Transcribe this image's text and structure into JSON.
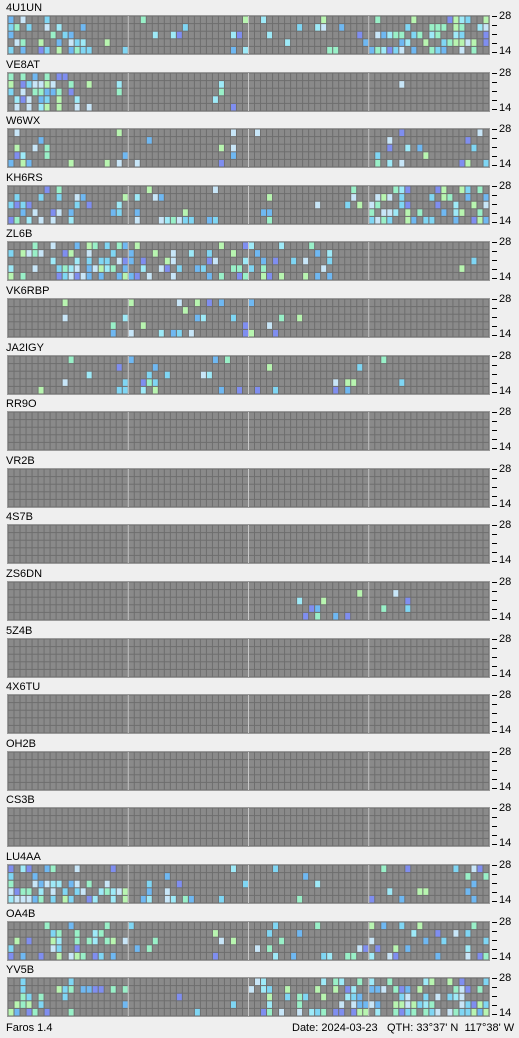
{
  "colors": {
    "background": "#efefef",
    "grid_bg": "#6e6e6e",
    "cell_off": "#8a8a8a",
    "cell_grid_line": "#6e6e6e",
    "block_divider": "#c8c8c8",
    "signal_levels": [
      "#c8e6f8",
      "#9eeaf8",
      "#7fd6f4",
      "#6fb8f2",
      "#7f8ef0",
      "#99f0c8",
      "#b8f5b0"
    ]
  },
  "scale_labels": {
    "top": "28",
    "bottom": "14"
  },
  "beacons": [
    {
      "call": "4U1UN",
      "activity": [
        0.55,
        0.4,
        0.15,
        0.05,
        0.05,
        0.1,
        0.2,
        0.1,
        0.2,
        0.55,
        0.6,
        0.65
      ]
    },
    {
      "call": "VE8AT",
      "activity": [
        0.6,
        0.35,
        0.05,
        0.0,
        0.0,
        0.05,
        0.02,
        0.0,
        0.0,
        0.02,
        0.0,
        0.0
      ]
    },
    {
      "call": "W6WX",
      "activity": [
        0.2,
        0.05,
        0.05,
        0.05,
        0.0,
        0.15,
        0.05,
        0.0,
        0.05,
        0.25,
        0.15,
        0.3
      ]
    },
    {
      "call": "KH6RS",
      "activity": [
        0.5,
        0.3,
        0.3,
        0.25,
        0.25,
        0.3,
        0.1,
        0.05,
        0.3,
        0.55,
        0.4,
        0.55
      ]
    },
    {
      "call": "ZL6B",
      "activity": [
        0.4,
        0.55,
        0.45,
        0.35,
        0.4,
        0.35,
        0.35,
        0.25,
        0.0,
        0.0,
        0.0,
        0.05
      ]
    },
    {
      "call": "VK6RBP",
      "activity": [
        0.05,
        0.05,
        0.05,
        0.2,
        0.4,
        0.3,
        0.2,
        0.05,
        0.0,
        0.0,
        0.0,
        0.0
      ]
    },
    {
      "call": "JA2IGY",
      "activity": [
        0.05,
        0.1,
        0.15,
        0.2,
        0.15,
        0.25,
        0.25,
        0.1,
        0.05,
        0.05,
        0.0,
        0.05
      ]
    },
    {
      "call": "RR9O",
      "activity": [
        0,
        0,
        0,
        0,
        0,
        0,
        0,
        0,
        0,
        0,
        0,
        0
      ]
    },
    {
      "call": "VR2B",
      "activity": [
        0,
        0,
        0,
        0,
        0,
        0,
        0,
        0,
        0,
        0,
        0,
        0
      ]
    },
    {
      "call": "4S7B",
      "activity": [
        0,
        0,
        0,
        0,
        0,
        0,
        0,
        0,
        0,
        0,
        0,
        0
      ]
    },
    {
      "call": "ZS6DN",
      "activity": [
        0.02,
        0.0,
        0.0,
        0.0,
        0.0,
        0.05,
        0.0,
        0.15,
        0.1,
        0.15,
        0.0,
        0.0
      ]
    },
    {
      "call": "5Z4B",
      "activity": [
        0,
        0,
        0,
        0,
        0,
        0,
        0,
        0,
        0,
        0,
        0,
        0
      ]
    },
    {
      "call": "4X6TU",
      "activity": [
        0,
        0,
        0,
        0,
        0,
        0,
        0,
        0,
        0,
        0,
        0,
        0
      ]
    },
    {
      "call": "OH2B",
      "activity": [
        0.0,
        0.0,
        0.0,
        0.0,
        0.01,
        0.0,
        0.0,
        0.0,
        0.0,
        0.0,
        0.0,
        0.0
      ]
    },
    {
      "call": "CS3B",
      "activity": [
        0,
        0,
        0,
        0,
        0,
        0,
        0,
        0,
        0,
        0,
        0,
        0
      ]
    },
    {
      "call": "LU4AA",
      "activity": [
        0.65,
        0.5,
        0.35,
        0.25,
        0.15,
        0.1,
        0.05,
        0.05,
        0.05,
        0.1,
        0.15,
        0.3
      ]
    },
    {
      "call": "OA4B",
      "activity": [
        0.25,
        0.4,
        0.35,
        0.1,
        0.05,
        0.1,
        0.1,
        0.1,
        0.15,
        0.3,
        0.25,
        0.35
      ]
    },
    {
      "call": "YV5B",
      "activity": [
        0.45,
        0.2,
        0.15,
        0.05,
        0.05,
        0.1,
        0.3,
        0.45,
        0.5,
        0.55,
        0.55,
        0.6
      ]
    }
  ],
  "status": {
    "app_name": "Faros 1.4",
    "date_label": "Date:",
    "date": "2024-03-23",
    "qth_label": "QTH:",
    "lat": "33°37' N",
    "lon": "117°38' W"
  }
}
